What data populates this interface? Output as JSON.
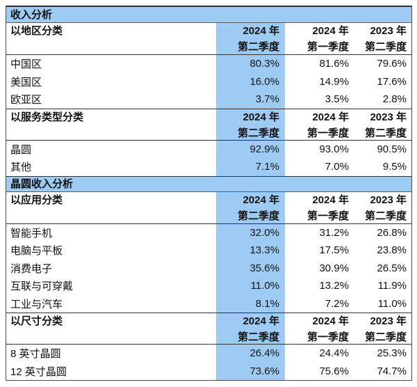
{
  "page": {
    "background": "#ffffff"
  },
  "table": {
    "highlight_color": "#9ECBF4",
    "border_color": "#333333",
    "sections": [
      {
        "title": "收入分析",
        "groups": [
          {
            "label": "以地区分类",
            "columns": [
              {
                "line1": "2024 年",
                "line2": "第二季度",
                "highlight": true
              },
              {
                "line1": "2024 年",
                "line2": "第一季度",
                "highlight": false
              },
              {
                "line1": "2023 年",
                "line2": "第二季度",
                "highlight": false
              }
            ],
            "rows": [
              {
                "label": "中国区",
                "values": [
                  "80.3%",
                  "81.6%",
                  "79.6%"
                ]
              },
              {
                "label": "美国区",
                "values": [
                  "16.0%",
                  "14.9%",
                  "17.6%"
                ]
              },
              {
                "label": "欧亚区",
                "values": [
                  "3.7%",
                  "3.5%",
                  "2.8%"
                ]
              }
            ]
          },
          {
            "label": "以服务类型分类",
            "columns": [
              {
                "line1": "2024 年",
                "line2": "第二季度",
                "highlight": true
              },
              {
                "line1": "2024 年",
                "line2": "第一季度",
                "highlight": false
              },
              {
                "line1": "2023 年",
                "line2": "第二季度",
                "highlight": false
              }
            ],
            "rows": [
              {
                "label": "晶圆",
                "values": [
                  "92.9%",
                  "93.0%",
                  "90.5%"
                ]
              },
              {
                "label": "其他",
                "values": [
                  "7.1%",
                  "7.0%",
                  "9.5%"
                ]
              }
            ]
          }
        ]
      },
      {
        "title": "晶圆收入分析",
        "groups": [
          {
            "label": "以应用分类",
            "columns": [
              {
                "line1": "2024 年",
                "line2": "第二季度",
                "highlight": true
              },
              {
                "line1": "2024 年",
                "line2": "第一季度",
                "highlight": false
              },
              {
                "line1": "2023 年",
                "line2": "第二季度",
                "highlight": false
              }
            ],
            "rows": [
              {
                "label": "智能手机",
                "values": [
                  "32.0%",
                  "31.2%",
                  "26.8%"
                ]
              },
              {
                "label": "电脑与平板",
                "values": [
                  "13.3%",
                  "17.5%",
                  "23.8%"
                ]
              },
              {
                "label": "消费电子",
                "values": [
                  "35.6%",
                  "30.9%",
                  "26.5%"
                ]
              },
              {
                "label": "互联与可穿戴",
                "values": [
                  "11.0%",
                  "13.2%",
                  "11.9%"
                ]
              },
              {
                "label": "工业与汽车",
                "values": [
                  "8.1%",
                  "7.2%",
                  "11.0%"
                ]
              }
            ]
          },
          {
            "label": "以尺寸分类",
            "columns": [
              {
                "line1": "2024 年",
                "line2": "第二季度",
                "highlight": true
              },
              {
                "line1": "2024 年",
                "line2": "第一季度",
                "highlight": false
              },
              {
                "line1": "2023 年",
                "line2": "第二季度",
                "highlight": false
              }
            ],
            "rows": [
              {
                "label": "8 英寸晶圆",
                "values": [
                  "26.4%",
                  "24.4%",
                  "25.3%"
                ]
              },
              {
                "label": "12 英寸晶圆",
                "values": [
                  "73.6%",
                  "75.6%",
                  "74.7%"
                ]
              }
            ]
          }
        ]
      }
    ]
  }
}
